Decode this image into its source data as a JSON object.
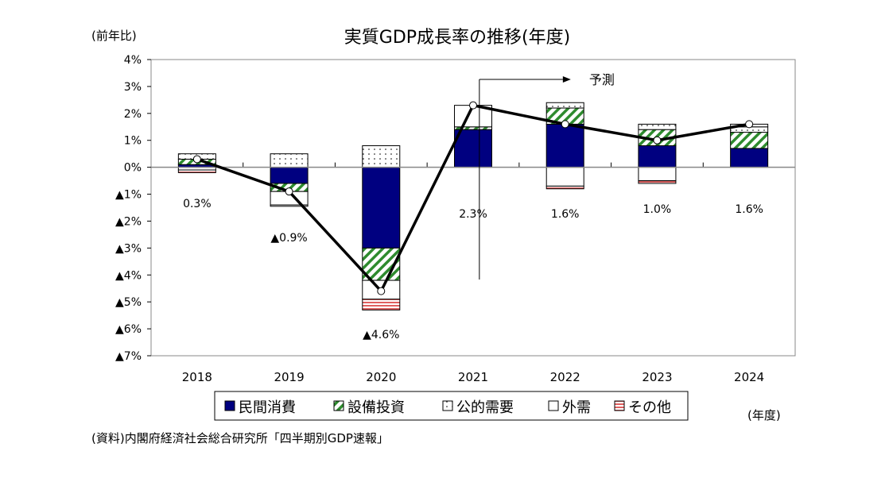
{
  "chart_data": {
    "type": "bar",
    "subtype": "stacked bar with line",
    "title": "実質GDP成長率の推移(年度)",
    "ylabel": "(前年比)",
    "xlabel": "(年度)",
    "source": "(資料)内閣府経済社会総合研究所「四半期別GDP速報」",
    "forecast_label": "予測",
    "forecast_start": "2022",
    "ylim": [
      -7,
      4
    ],
    "yticks": [
      4,
      3,
      2,
      1,
      0,
      -1,
      -2,
      -3,
      -4,
      -5,
      -6,
      -7
    ],
    "ytick_labels": [
      "4%",
      "3%",
      "2%",
      "1%",
      "0%",
      "▲1%",
      "▲2%",
      "▲3%",
      "▲4%",
      "▲5%",
      "▲6%",
      "▲7%"
    ],
    "categories": [
      "2018",
      "2019",
      "2020",
      "2021",
      "2022",
      "2023",
      "2024"
    ],
    "series": [
      {
        "name": "民間消費",
        "color": "#000080",
        "pattern": "solid",
        "values": [
          0.1,
          -0.6,
          -3.0,
          1.4,
          1.6,
          0.8,
          0.7
        ]
      },
      {
        "name": "設備投資",
        "color": "#2e8b2e",
        "pattern": "diagonal-stripes",
        "values": [
          0.2,
          -0.3,
          -1.2,
          0.1,
          0.6,
          0.6,
          0.6
        ]
      },
      {
        "name": "公的需要",
        "color": "#000000",
        "pattern": "dots",
        "values": [
          0.2,
          0.5,
          0.8,
          0.0,
          0.2,
          0.2,
          0.2
        ]
      },
      {
        "name": "外需",
        "color": "#ffffff",
        "pattern": "white",
        "values": [
          -0.1,
          -0.5,
          -0.7,
          0.8,
          -0.7,
          -0.5,
          0.1
        ]
      },
      {
        "name": "その他",
        "color": "#e06060",
        "pattern": "horizontal-stripes",
        "values": [
          -0.1,
          -0.05,
          -0.4,
          0.0,
          -0.1,
          -0.1,
          0.0
        ]
      }
    ],
    "line": {
      "values": [
        0.3,
        -0.9,
        -4.6,
        2.3,
        1.6,
        1.0,
        1.6
      ],
      "labels": [
        "0.3%",
        "▲0.9%",
        "▲4.6%",
        "2.3%",
        "1.6%",
        "1.0%",
        "1.6%"
      ]
    },
    "grid": false,
    "legend_position": "bottom"
  }
}
